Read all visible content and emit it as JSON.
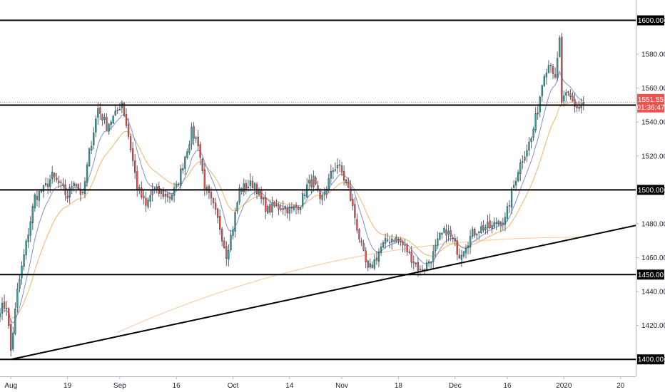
{
  "chart_data": {
    "type": "candlestick",
    "instrument": "",
    "ylim": [
      1390,
      1612
    ],
    "y_ticks": [
      "1400.00",
      "1420.00",
      "1440.00",
      "1460.00",
      "1480.00",
      "1500.00",
      "1520.00",
      "1540.00",
      "1560.00",
      "1580.00",
      "1600.00"
    ],
    "x_ticks": [
      "Aug",
      "19",
      "Sep",
      "16",
      "Oct",
      "14",
      "Nov",
      "18",
      "Dec",
      "16",
      "2020",
      "20"
    ],
    "x_tick_index": [
      5,
      31,
      55,
      81,
      107,
      133,
      157,
      183,
      209,
      233,
      259,
      285
    ],
    "x_range": [
      0,
      292
    ],
    "horizontal_levels": [
      {
        "label": "1400.00",
        "value": 1400
      },
      {
        "label": "1450.00",
        "value": 1450
      },
      {
        "label": "1500.00",
        "value": 1500
      },
      {
        "label": "1550.00",
        "value": 1550
      },
      {
        "label": "1600.00",
        "value": 1600
      }
    ],
    "trendline": {
      "from": [
        5,
        1400
      ],
      "to": [
        292,
        1479
      ]
    },
    "last_price": {
      "value": 1551.55,
      "label": "1551.55",
      "countdown": "01:36:47"
    },
    "price_path": [
      [
        0,
        1430
      ],
      [
        3,
        1432
      ],
      [
        5,
        1405
      ],
      [
        8,
        1440
      ],
      [
        12,
        1468
      ],
      [
        16,
        1496
      ],
      [
        20,
        1500
      ],
      [
        24,
        1508
      ],
      [
        28,
        1502
      ],
      [
        31,
        1496
      ],
      [
        34,
        1506
      ],
      [
        38,
        1496
      ],
      [
        41,
        1522
      ],
      [
        45,
        1548
      ],
      [
        49,
        1538
      ],
      [
        53,
        1544
      ],
      [
        56,
        1552
      ],
      [
        59,
        1532
      ],
      [
        63,
        1502
      ],
      [
        67,
        1490
      ],
      [
        70,
        1500
      ],
      [
        74,
        1498
      ],
      [
        78,
        1496
      ],
      [
        81,
        1501
      ],
      [
        85,
        1520
      ],
      [
        88,
        1534
      ],
      [
        91,
        1528
      ],
      [
        94,
        1502
      ],
      [
        98,
        1490
      ],
      [
        101,
        1478
      ],
      [
        104,
        1462
      ],
      [
        107,
        1478
      ],
      [
        110,
        1500
      ],
      [
        113,
        1502
      ],
      [
        117,
        1504
      ],
      [
        120,
        1494
      ],
      [
        123,
        1488
      ],
      [
        126,
        1490
      ],
      [
        130,
        1490
      ],
      [
        134,
        1488
      ],
      [
        138,
        1492
      ],
      [
        141,
        1502
      ],
      [
        144,
        1506
      ],
      [
        147,
        1492
      ],
      [
        150,
        1502
      ],
      [
        153,
        1512
      ],
      [
        155,
        1515
      ],
      [
        157,
        1510
      ],
      [
        160,
        1500
      ],
      [
        163,
        1484
      ],
      [
        166,
        1466
      ],
      [
        169,
        1452
      ],
      [
        172,
        1458
      ],
      [
        175,
        1466
      ],
      [
        178,
        1470
      ],
      [
        181,
        1472
      ],
      [
        184,
        1469
      ],
      [
        187,
        1464
      ],
      [
        190,
        1458
      ],
      [
        193,
        1452
      ],
      [
        196,
        1456
      ],
      [
        199,
        1462
      ],
      [
        202,
        1472
      ],
      [
        205,
        1476
      ],
      [
        208,
        1470
      ],
      [
        211,
        1462
      ],
      [
        214,
        1468
      ],
      [
        217,
        1474
      ],
      [
        220,
        1477
      ],
      [
        223,
        1478
      ],
      [
        226,
        1478
      ],
      [
        229,
        1482
      ],
      [
        232,
        1482
      ],
      [
        235,
        1498
      ],
      [
        238,
        1512
      ],
      [
        241,
        1522
      ],
      [
        244,
        1530
      ],
      [
        247,
        1548
      ],
      [
        250,
        1570
      ],
      [
        253,
        1576
      ],
      [
        255,
        1564
      ],
      [
        257,
        1588
      ],
      [
        258,
        1552
      ],
      [
        261,
        1556
      ],
      [
        264,
        1550
      ],
      [
        266,
        1548
      ],
      [
        268,
        1551.55
      ]
    ],
    "ema_fast_color": "#7f8fd6",
    "ema_slow_color": "#f3b26b",
    "sma_long_color": "#f7c994",
    "up_color": "#26a69a",
    "down_color": "#ef5350"
  }
}
